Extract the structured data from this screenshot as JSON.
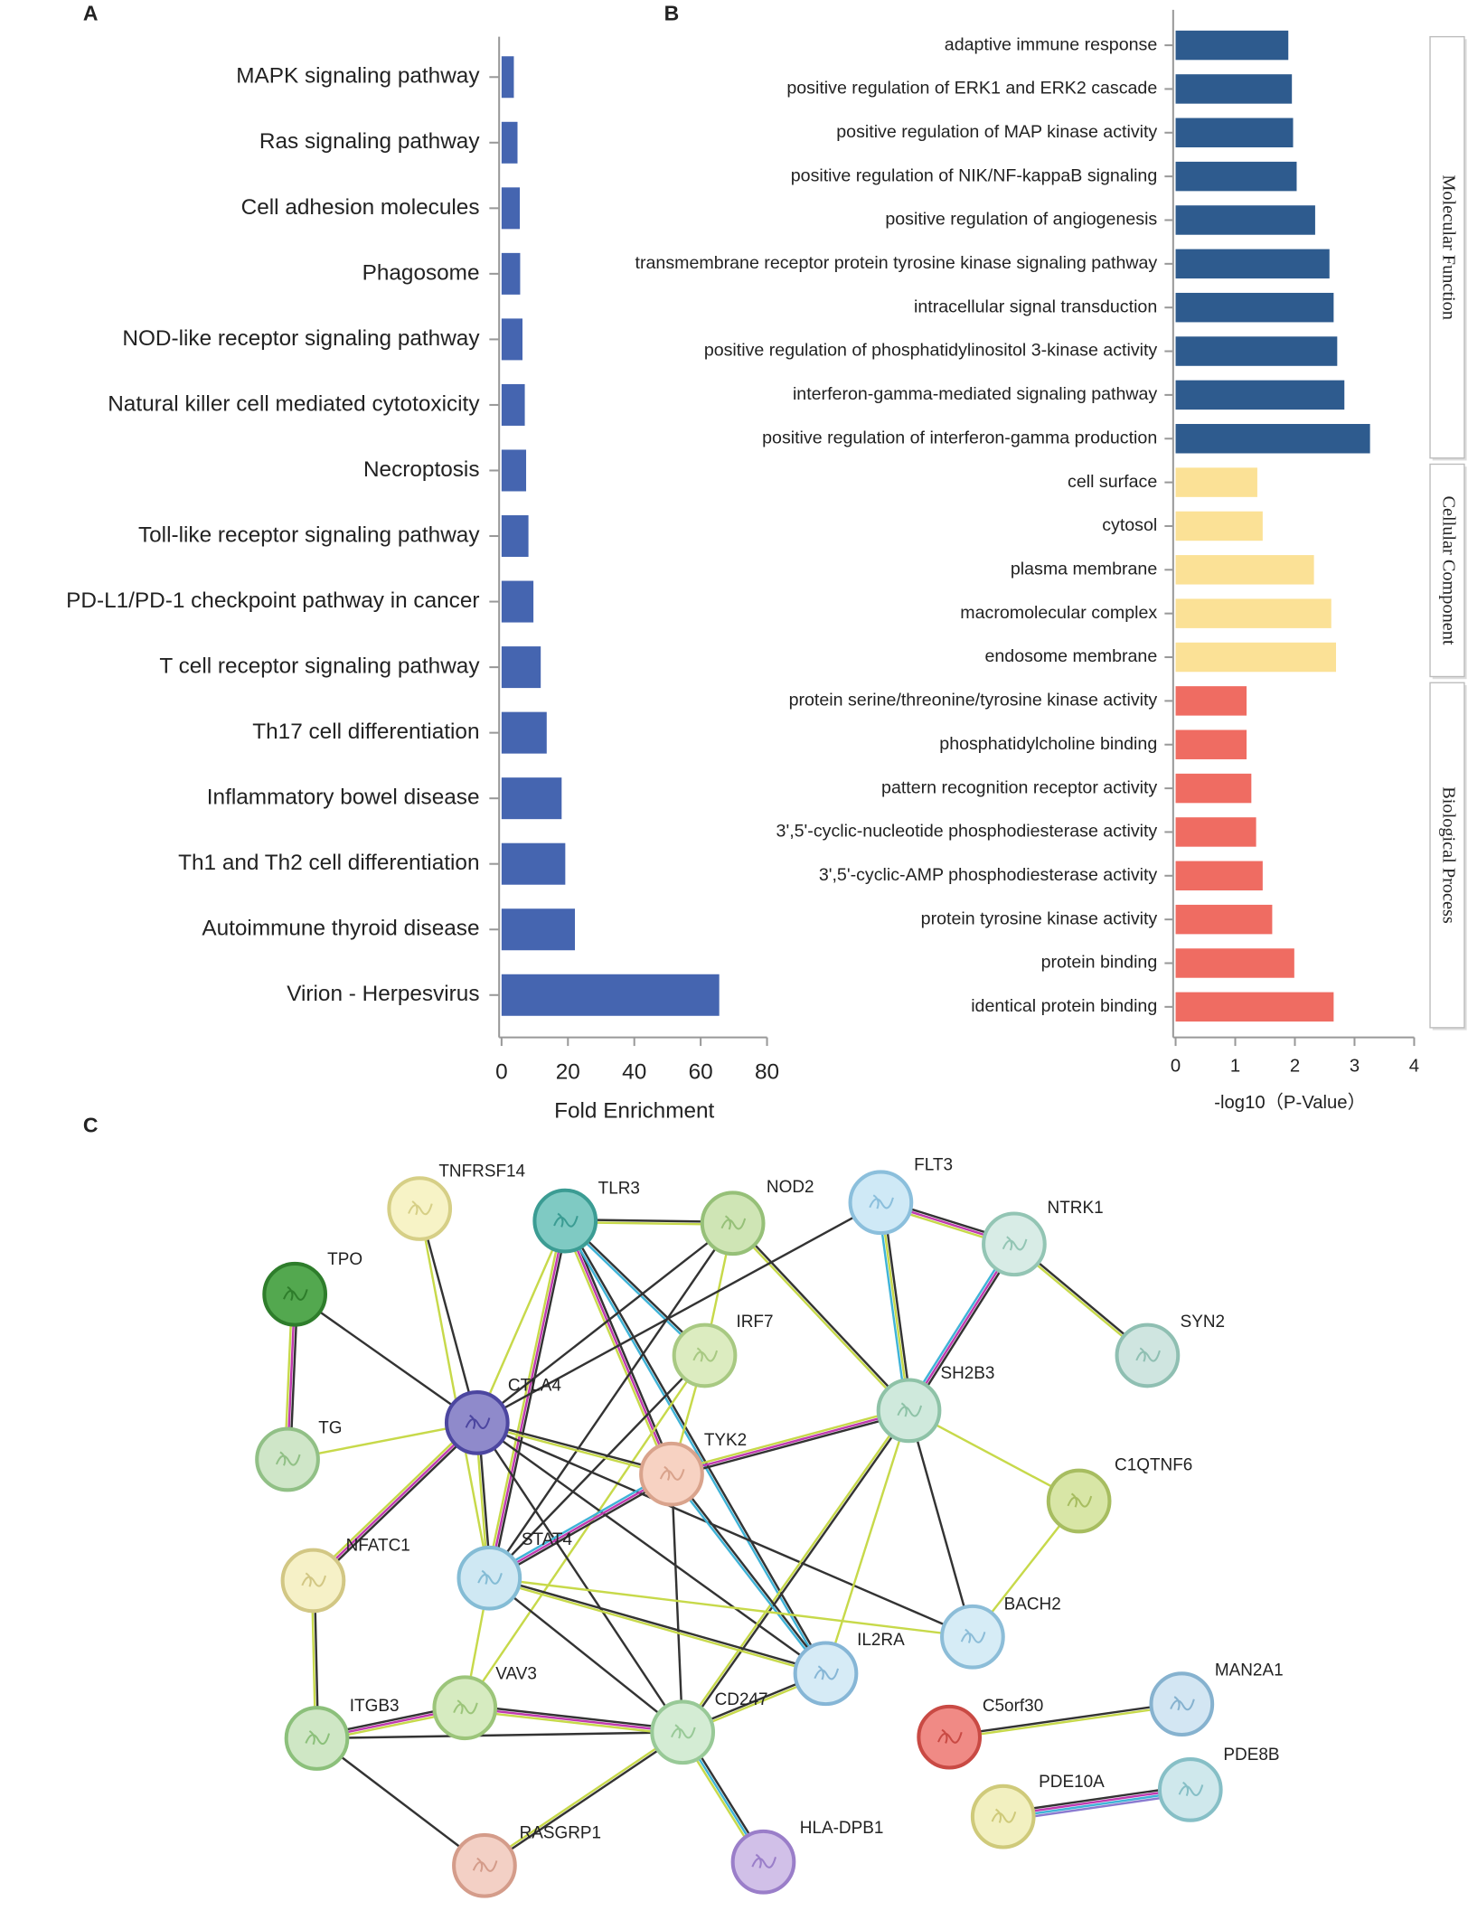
{
  "chart_data": [
    {
      "type": "bar",
      "panel": "A",
      "categories": [
        "MAPK signaling pathway",
        "Ras signaling pathway",
        "Cell adhesion molecules",
        "Phagosome",
        "NOD-like receptor signaling pathway",
        "Natural killer cell mediated cytotoxicity",
        "Necroptosis",
        "Toll-like receptor signaling pathway",
        "PD-L1/PD-1 checkpoint pathway in cancer",
        "T cell receptor signaling pathway",
        "Th17 cell differentiation",
        "Inflammatory bowel disease",
        "Th1 and Th2 cell differentiation",
        "Autoimmune thyroid disease",
        "Virion - Herpesvirus"
      ],
      "values": [
        3.7,
        4.8,
        5.5,
        5.6,
        6.3,
        7.0,
        7.4,
        8.1,
        9.6,
        11.8,
        13.6,
        18.1,
        19.2,
        22.1,
        65.6
      ],
      "color": "#4565b0",
      "xlabel": "Fold Enrichment",
      "xlim": [
        0,
        80
      ],
      "xticks": [
        0,
        20,
        40,
        60,
        80
      ]
    },
    {
      "type": "grouped-bar",
      "panel": "B",
      "groups": [
        {
          "name": "Molecular Function",
          "color": "#2e5b8e",
          "categories": [
            "adaptive immune response",
            "positive regulation of ERK1 and ERK2 cascade",
            "positive regulation of MAP kinase activity",
            "positive regulation of NIK/NF-kappaB signaling",
            "positive regulation of angiogenesis",
            "transmembrane receptor protein tyrosine kinase signaling pathway",
            "intracellular signal transduction",
            "positive regulation of phosphatidylinositol 3-kinase activity",
            "interferon-gamma-mediated signaling pathway",
            "positive regulation of interferon-gamma production"
          ],
          "values": [
            1.89,
            1.95,
            1.97,
            2.03,
            2.34,
            2.58,
            2.65,
            2.71,
            2.83,
            3.26
          ]
        },
        {
          "name": "Cellular Component",
          "color": "#fbe196",
          "categories": [
            "cell surface",
            "cytosol",
            "plasma membrane",
            "macromolecular complex",
            "endosome membrane"
          ],
          "values": [
            1.37,
            1.46,
            2.32,
            2.61,
            2.69
          ]
        },
        {
          "name": "Biological Process",
          "color": "#ef6c62",
          "categories": [
            "protein serine/threonine/tyrosine kinase activity",
            "phosphatidylcholine binding",
            "pattern recognition receptor activity",
            "3',5'-cyclic-nucleotide phosphodiesterase activity",
            "3',5'-cyclic-AMP phosphodiesterase activity",
            "protein tyrosine kinase activity",
            "protein binding",
            "identical protein binding"
          ],
          "values": [
            1.19,
            1.19,
            1.27,
            1.35,
            1.46,
            1.62,
            1.99,
            2.65
          ]
        }
      ],
      "xlabel": "-log10（P-Value）",
      "xlim": [
        0,
        4
      ],
      "xticks": [
        0,
        1,
        2,
        3,
        4
      ]
    }
  ],
  "network": {
    "panel": "C",
    "nodes": [
      "TNFRSF14",
      "TLR3",
      "NOD2",
      "FLT3",
      "NTRK1",
      "TPO",
      "IRF7",
      "SYN2",
      "CTLA4",
      "SH2B3",
      "TG",
      "TYK2",
      "C1QTNF6",
      "NFATC1",
      "STAT4",
      "BACH2",
      "IL2RA",
      "VAV3",
      "ITGB3",
      "CD247",
      "C5orf30",
      "MAN2A1",
      "PDE10A",
      "PDE8B",
      "RASGRP1",
      "HLA-DPB1"
    ]
  }
}
